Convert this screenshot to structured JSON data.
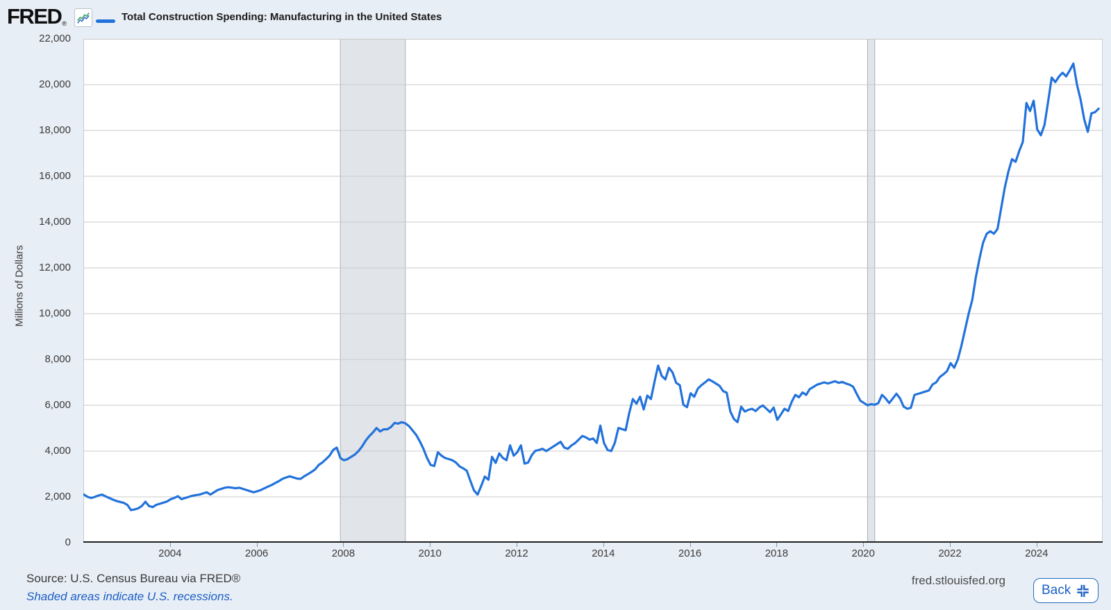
{
  "header": {
    "logo": "FRED",
    "registered_mark": "®",
    "legend": {
      "series_label": "Total Construction Spending: Manufacturing in the United States"
    }
  },
  "footer": {
    "source_text": "Source: U.S. Census Bureau via FRED®",
    "recessions_note": "Shaded areas indicate U.S. recessions.",
    "site_url": "fred.stlouisfed.org",
    "back_label": "Back"
  },
  "colors": {
    "line": "#2272db",
    "page_bg": "#e8eef5",
    "grid": "#c9c9c9",
    "recession_fill": "#e1e5ea",
    "recession_edge": "#a9b0ba",
    "axis": "#1f1f1f",
    "link_blue": "#1a5dc7",
    "button_blue": "#1b5fc4"
  },
  "chart_data": {
    "type": "line",
    "title": "Total Construction Spending: Manufacturing in the United States",
    "ylabel": "Millions of Dollars",
    "ylim": [
      0,
      22000
    ],
    "ytick_step": 2000,
    "xticks": [
      2004,
      2006,
      2008,
      2010,
      2012,
      2014,
      2016,
      2018,
      2020,
      2022,
      2024
    ],
    "frequency": "monthly",
    "start": "2002-01",
    "end": "2025-06",
    "grid": true,
    "legend_position": "top-left",
    "recessions": [
      {
        "start": "2007-12",
        "end": "2009-06"
      },
      {
        "start": "2020-02",
        "end": "2020-04"
      }
    ],
    "series": [
      {
        "name": "Total Construction Spending: Manufacturing in the United States",
        "values": [
          2100,
          2000,
          1950,
          2000,
          2060,
          2100,
          2020,
          1950,
          1880,
          1820,
          1780,
          1740,
          1650,
          1424,
          1450,
          1500,
          1600,
          1787,
          1600,
          1555,
          1650,
          1700,
          1750,
          1800,
          1900,
          1950,
          2030,
          1900,
          1950,
          2000,
          2050,
          2080,
          2100,
          2150,
          2200,
          2100,
          2200,
          2300,
          2350,
          2400,
          2420,
          2400,
          2380,
          2400,
          2350,
          2300,
          2250,
          2200,
          2250,
          2300,
          2380,
          2450,
          2520,
          2610,
          2690,
          2790,
          2850,
          2900,
          2850,
          2800,
          2788,
          2900,
          2990,
          3090,
          3200,
          3394,
          3500,
          3645,
          3800,
          4050,
          4152,
          3697,
          3596,
          3650,
          3750,
          3848,
          4000,
          4200,
          4455,
          4650,
          4809,
          5010,
          4858,
          4950,
          4950,
          5050,
          5230,
          5200,
          5260,
          5212,
          5090,
          4900,
          4706,
          4424,
          4100,
          3700,
          3394,
          3350,
          3949,
          3800,
          3697,
          3650,
          3600,
          3500,
          3333,
          3250,
          3142,
          2700,
          2282,
          2100,
          2475,
          2888,
          2750,
          3748,
          3485,
          3900,
          3700,
          3600,
          4252,
          3800,
          3950,
          4252,
          3450,
          3500,
          3820,
          4012,
          4050,
          4100,
          4000,
          4100,
          4200,
          4303,
          4406,
          4150,
          4100,
          4250,
          4350,
          4500,
          4657,
          4600,
          4500,
          4550,
          4354,
          5112,
          4354,
          4050,
          4000,
          4354,
          5010,
          4960,
          4910,
          5667,
          6273,
          6071,
          6374,
          5818,
          6424,
          6273,
          7030,
          7736,
          7282,
          7130,
          7636,
          7434,
          6980,
          6879,
          6020,
          5919,
          6525,
          6374,
          6727,
          6879,
          7000,
          7130,
          7050,
          6950,
          6850,
          6620,
          6545,
          5727,
          5400,
          5264,
          5940,
          5727,
          5800,
          5850,
          5750,
          5900,
          5990,
          5850,
          5700,
          5900,
          5364,
          5600,
          5850,
          5750,
          6150,
          6455,
          6350,
          6560,
          6450,
          6710,
          6800,
          6900,
          6950,
          7000,
          6950,
          7000,
          7050,
          6980,
          7020,
          6950,
          6900,
          6815,
          6500,
          6200,
          6100,
          6000,
          6050,
          6020,
          6100,
          6455,
          6300,
          6100,
          6300,
          6505,
          6300,
          5940,
          5850,
          5890,
          6455,
          6500,
          6550,
          6600,
          6650,
          6910,
          7000,
          7230,
          7350,
          7490,
          7840,
          7640,
          8000,
          8600,
          9300,
          10000,
          10600,
          11600,
          12400,
          13100,
          13490,
          13600,
          13490,
          13700,
          14600,
          15500,
          16200,
          16750,
          16630,
          17100,
          17500,
          19200,
          18850,
          19300,
          18040,
          17790,
          18240,
          19250,
          20310,
          20110,
          20350,
          20520,
          20360,
          20620,
          20920,
          20000,
          19350,
          18490,
          17940,
          18750,
          18800,
          18950
        ]
      }
    ]
  }
}
